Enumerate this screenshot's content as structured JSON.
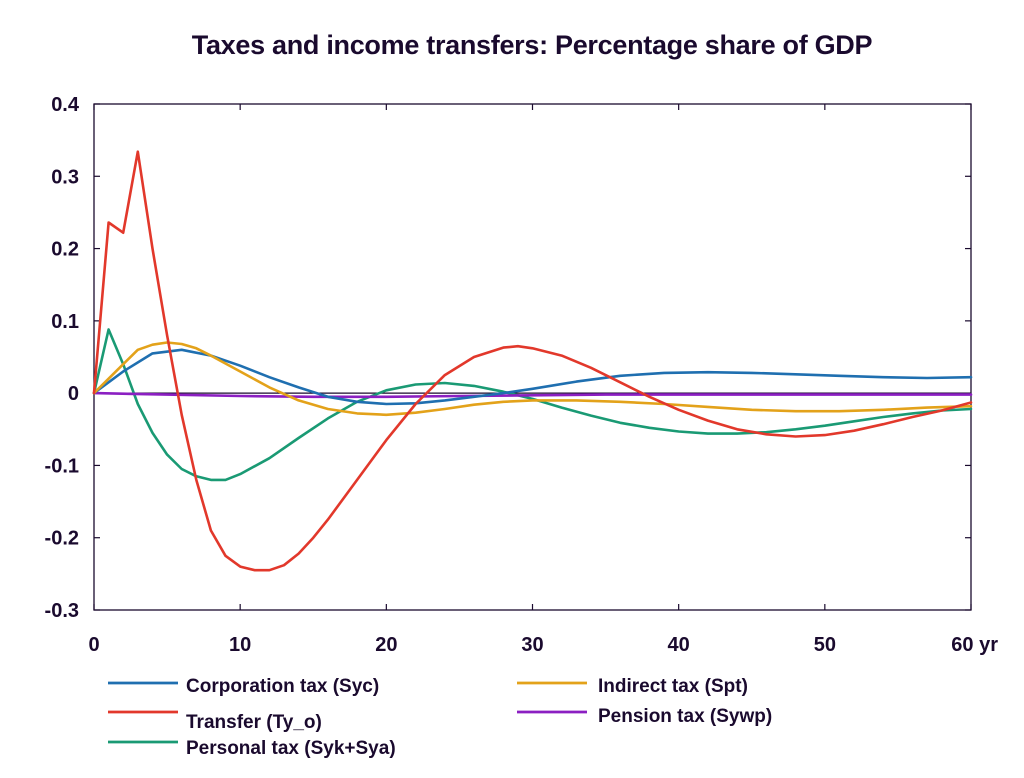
{
  "chart_data": {
    "type": "line",
    "title": "Taxes and income transfers: Percentage share of GDP",
    "xlabel": "",
    "ylabel": "",
    "xlim": [
      0,
      60
    ],
    "ylim": [
      -0.3,
      0.4
    ],
    "x_ticks": [
      0,
      10,
      20,
      30,
      40,
      50,
      60
    ],
    "x_tick_labels": [
      "0",
      "10",
      "20",
      "30",
      "40",
      "50",
      "60 yr"
    ],
    "y_ticks": [
      0.4,
      0.3,
      0.2,
      0.1,
      0,
      -0.1,
      -0.2,
      -0.3
    ],
    "y_tick_labels": [
      "0.4",
      "0.3",
      "0.2",
      "0.1",
      "0",
      "-0.1",
      "-0.2",
      "-0.3"
    ],
    "grid": false,
    "legend_position": "bottom",
    "series": [
      {
        "name": "Corporation tax (Syc)",
        "color": "#1f6fb0",
        "x": [
          0,
          2,
          4,
          6,
          8,
          10,
          12,
          14,
          16,
          18,
          20,
          22,
          24,
          26,
          28,
          30,
          33,
          36,
          39,
          42,
          45,
          48,
          51,
          54,
          57,
          60
        ],
        "y": [
          0,
          0.03,
          0.055,
          0.06,
          0.052,
          0.038,
          0.022,
          0.008,
          -0.005,
          -0.012,
          -0.015,
          -0.014,
          -0.01,
          -0.005,
          0.0,
          0.006,
          0.016,
          0.024,
          0.028,
          0.029,
          0.028,
          0.026,
          0.024,
          0.022,
          0.021,
          0.022
        ]
      },
      {
        "name": "Transfer (Ty_o)",
        "color": "#e2382b",
        "x": [
          0,
          1,
          2,
          3,
          4,
          5,
          6,
          7,
          8,
          9,
          10,
          11,
          12,
          13,
          14,
          15,
          16,
          18,
          20,
          22,
          24,
          26,
          28,
          29,
          30,
          32,
          34,
          36,
          38,
          40,
          42,
          44,
          46,
          48,
          50,
          52,
          54,
          56,
          58,
          60
        ],
        "y": [
          0,
          0.236,
          0.222,
          0.334,
          0.2,
          0.08,
          -0.03,
          -0.12,
          -0.19,
          -0.225,
          -0.24,
          -0.245,
          -0.245,
          -0.238,
          -0.222,
          -0.2,
          -0.175,
          -0.12,
          -0.065,
          -0.015,
          0.025,
          0.05,
          0.063,
          0.065,
          0.062,
          0.052,
          0.035,
          0.015,
          -0.005,
          -0.023,
          -0.038,
          -0.05,
          -0.057,
          -0.06,
          -0.058,
          -0.052,
          -0.043,
          -0.033,
          -0.024,
          -0.013
        ]
      },
      {
        "name": "Personal tax (Syk+Sya)",
        "color": "#1a9a74",
        "x": [
          0,
          1,
          2,
          3,
          4,
          5,
          6,
          7,
          8,
          9,
          10,
          12,
          14,
          16,
          18,
          20,
          22,
          24,
          26,
          28,
          30,
          32,
          34,
          36,
          38,
          40,
          42,
          44,
          46,
          48,
          50,
          52,
          54,
          56,
          58,
          60
        ],
        "y": [
          0,
          0.088,
          0.04,
          -0.015,
          -0.055,
          -0.085,
          -0.105,
          -0.115,
          -0.12,
          -0.12,
          -0.112,
          -0.09,
          -0.062,
          -0.035,
          -0.012,
          0.004,
          0.012,
          0.014,
          0.01,
          0.002,
          -0.008,
          -0.02,
          -0.031,
          -0.041,
          -0.048,
          -0.053,
          -0.056,
          -0.056,
          -0.054,
          -0.05,
          -0.045,
          -0.039,
          -0.033,
          -0.028,
          -0.024,
          -0.022
        ]
      },
      {
        "name": "Indirect tax (Spt)",
        "color": "#e3a21a",
        "x": [
          0,
          1,
          2,
          3,
          4,
          5,
          6,
          7,
          8,
          10,
          12,
          14,
          16,
          18,
          20,
          22,
          24,
          26,
          28,
          30,
          33,
          36,
          39,
          42,
          45,
          48,
          51,
          54,
          57,
          60
        ],
        "y": [
          0,
          0.02,
          0.04,
          0.06,
          0.067,
          0.07,
          0.068,
          0.062,
          0.052,
          0.03,
          0.008,
          -0.01,
          -0.022,
          -0.028,
          -0.03,
          -0.027,
          -0.022,
          -0.016,
          -0.012,
          -0.01,
          -0.01,
          -0.012,
          -0.015,
          -0.019,
          -0.023,
          -0.025,
          -0.025,
          -0.023,
          -0.02,
          -0.018
        ]
      },
      {
        "name": "Pension tax (Sywp)",
        "color": "#8b1fc2",
        "x": [
          0,
          5,
          10,
          15,
          20,
          25,
          30,
          35,
          40,
          45,
          50,
          55,
          60
        ],
        "y": [
          0,
          -0.002,
          -0.004,
          -0.005,
          -0.005,
          -0.004,
          -0.003,
          -0.002,
          -0.002,
          -0.002,
          -0.002,
          -0.002,
          -0.002
        ]
      }
    ]
  }
}
